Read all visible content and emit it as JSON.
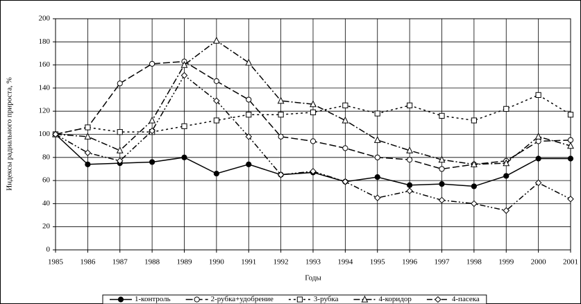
{
  "chart_data": {
    "type": "line",
    "x_label": "Годы",
    "y_label": "Индексы радиального прироста, %",
    "x": [
      1985,
      1986,
      1987,
      1988,
      1989,
      1990,
      1991,
      1992,
      1993,
      1994,
      1995,
      1996,
      1997,
      1998,
      1999,
      2000,
      2001
    ],
    "xlim": [
      1985,
      2001
    ],
    "xticks": [
      1985,
      1986,
      1987,
      1988,
      1989,
      1990,
      1991,
      1992,
      1993,
      1994,
      1995,
      1996,
      1997,
      1998,
      1999,
      2000,
      2001
    ],
    "ylim": [
      0,
      200
    ],
    "yticks": [
      0,
      20,
      40,
      60,
      80,
      100,
      120,
      140,
      160,
      180,
      200
    ],
    "grid": true,
    "legend": "bottom",
    "series": [
      {
        "name": "1-контроль",
        "color": "#000000",
        "line_style": "solid",
        "marker": "filled-circle",
        "values": [
          100,
          74,
          75,
          76,
          80,
          66,
          74,
          65,
          67,
          59,
          63,
          56,
          57,
          55,
          64,
          79,
          79
        ]
      },
      {
        "name": "2-рубка+удобрение",
        "color": "#000000",
        "line_style": "dashed",
        "marker": "circle",
        "values": [
          100,
          106,
          144,
          161,
          163,
          146,
          130,
          98,
          94,
          88,
          80,
          78,
          70,
          74,
          77,
          94,
          95
        ]
      },
      {
        "name": "3-рубка",
        "color": "#000000",
        "line_style": "dotted",
        "marker": "square",
        "values": [
          100,
          106,
          102,
          102,
          107,
          112,
          117,
          117,
          119,
          125,
          118,
          125,
          116,
          112,
          122,
          134,
          117
        ]
      },
      {
        "name": "4-коридор",
        "color": "#000000",
        "line_style": "dashdot",
        "marker": "triangle",
        "values": [
          100,
          98,
          86,
          112,
          160,
          181,
          162,
          129,
          126,
          112,
          95,
          86,
          78,
          74,
          75,
          98,
          90
        ]
      },
      {
        "name": "4-пасека",
        "color": "#000000",
        "line_style": "dashdotdot",
        "marker": "diamond",
        "values": [
          100,
          84,
          77,
          103,
          151,
          129,
          98,
          65,
          68,
          59,
          45,
          51,
          43,
          40,
          34,
          58,
          44
        ]
      }
    ]
  }
}
